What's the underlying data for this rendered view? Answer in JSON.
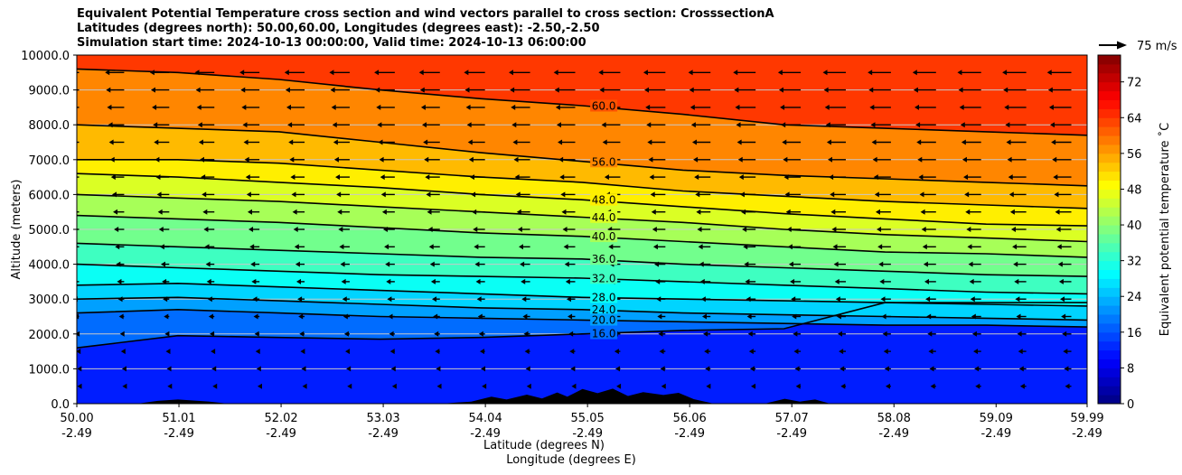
{
  "titles": {
    "line1": "Equivalent Potential Temperature cross section and wind vectors parallel to cross section: CrosssectionA",
    "line2": "Latitudes (degrees north): 50.00,60.00, Longitudes (degrees east): -2.50,-2.50",
    "line3": "Simulation start time: 2024-10-13 00:00:00, Valid time: 2024-10-13 06:00:00"
  },
  "quiver_key": {
    "label": "75 m/s"
  },
  "chart_data": {
    "type": "heatmap",
    "xlabel_lat": "Latitude (degrees N)",
    "xlabel_lon": "Longitude (degrees E)",
    "ylabel": "Altitude (meters)",
    "colorbar_label": "Equivalent potential temperature ˚C",
    "ylim": [
      0,
      10000
    ],
    "xlim": [
      50.0,
      59.99
    ],
    "grid": "horizontal",
    "x_ticks": [
      {
        "lat": "50.00",
        "lon": "-2.49"
      },
      {
        "lat": "51.01",
        "lon": "-2.49"
      },
      {
        "lat": "52.02",
        "lon": "-2.49"
      },
      {
        "lat": "53.03",
        "lon": "-2.49"
      },
      {
        "lat": "54.04",
        "lon": "-2.49"
      },
      {
        "lat": "55.05",
        "lon": "-2.49"
      },
      {
        "lat": "56.06",
        "lon": "-2.49"
      },
      {
        "lat": "57.07",
        "lon": "-2.49"
      },
      {
        "lat": "58.08",
        "lon": "-2.49"
      },
      {
        "lat": "59.09",
        "lon": "-2.49"
      },
      {
        "lat": "59.99",
        "lon": "-2.49"
      }
    ],
    "y_ticks": [
      "0.0",
      "1000.0",
      "2000.0",
      "3000.0",
      "4000.0",
      "5000.0",
      "6000.0",
      "7000.0",
      "8000.0",
      "9000.0",
      "10000.0"
    ],
    "colorbar_ticks": [
      "0",
      "8",
      "16",
      "24",
      "32",
      "40",
      "48",
      "56",
      "64",
      "72"
    ],
    "colorbar_range": [
      0,
      78
    ],
    "contour_labels": [
      "60.0",
      "56.0",
      "48.0",
      "44.0",
      "40.0",
      "36.0",
      "32.0",
      "28.0",
      "24.0",
      "20.0",
      "16.0"
    ],
    "contour_levels": [
      {
        "level": 60,
        "altitude": [
          9600,
          9500,
          9300,
          9000,
          8750,
          8550,
          8300,
          8000,
          7900,
          7800,
          7700
        ]
      },
      {
        "level": 56,
        "altitude": [
          8000,
          7900,
          7800,
          7500,
          7200,
          6950,
          6700,
          6550,
          6450,
          6350,
          6250
        ]
      },
      {
        "level": 52,
        "altitude": [
          7000,
          7000,
          6900,
          6700,
          6500,
          6350,
          6100,
          5950,
          5800,
          5700,
          5600
        ]
      },
      {
        "level": 48,
        "altitude": [
          6600,
          6500,
          6350,
          6200,
          6000,
          5850,
          5650,
          5450,
          5300,
          5150,
          5100
        ]
      },
      {
        "level": 44,
        "altitude": [
          6000,
          5900,
          5800,
          5650,
          5500,
          5350,
          5200,
          5000,
          4850,
          4750,
          4650
        ]
      },
      {
        "level": 40,
        "altitude": [
          5400,
          5300,
          5200,
          5050,
          4900,
          4800,
          4650,
          4500,
          4350,
          4300,
          4200
        ]
      },
      {
        "level": 36,
        "altitude": [
          4600,
          4500,
          4400,
          4300,
          4200,
          4150,
          4000,
          3900,
          3800,
          3700,
          3650
        ]
      },
      {
        "level": 32,
        "altitude": [
          4000,
          3900,
          3800,
          3700,
          3650,
          3600,
          3500,
          3400,
          3300,
          3200,
          3150
        ]
      },
      {
        "level": 28,
        "altitude": [
          3400,
          3450,
          3350,
          3250,
          3150,
          3050,
          3000,
          2950,
          2900,
          2850,
          2800
        ]
      },
      {
        "level": 24,
        "altitude": [
          3000,
          3050,
          2950,
          2850,
          2750,
          2700,
          2600,
          2550,
          2500,
          2450,
          2400
        ]
      },
      {
        "level": 20,
        "altitude": [
          2600,
          2700,
          2600,
          2500,
          2450,
          2400,
          2350,
          2300,
          2250,
          2250,
          2200
        ]
      },
      {
        "level": 16,
        "altitude": [
          1600,
          1950,
          1900,
          1850,
          1900,
          2000,
          2100,
          2150,
          2900,
          2900,
          2900
        ]
      }
    ],
    "wind_vectors_direction": "westward (toward lower latitude)",
    "terrain": "orography up to ~450 m between 54.0 and 57.5 degrees N"
  }
}
